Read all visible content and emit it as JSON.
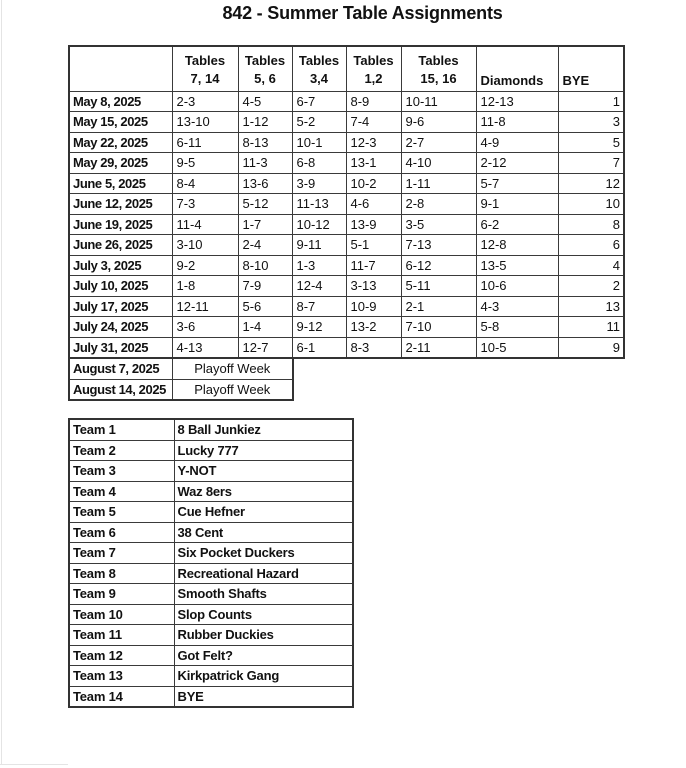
{
  "title": "842 - Summer Table Assignments",
  "schedule_table": {
    "header": {
      "columns": [
        {
          "line1": "",
          "line2": ""
        },
        {
          "line1": "Tables",
          "line2": "7, 14"
        },
        {
          "line1": "Tables",
          "line2": "5, 6"
        },
        {
          "line1": "Tables",
          "line2": "3,4"
        },
        {
          "line1": "Tables",
          "line2": "1,2"
        },
        {
          "line1": "Tables",
          "line2": "15, 16"
        },
        {
          "line1": "",
          "line2": "Diamonds"
        },
        {
          "line1": "",
          "line2": "BYE"
        }
      ]
    },
    "rows": [
      {
        "date": "May 8, 2025",
        "matches": [
          "2-3",
          "4-5",
          "6-7",
          "8-9",
          "10-11",
          "12-13"
        ],
        "bye": "1"
      },
      {
        "date": "May 15, 2025",
        "matches": [
          "13-10",
          "1-12",
          "5-2",
          "7-4",
          "9-6",
          "11-8"
        ],
        "bye": "3"
      },
      {
        "date": "May 22, 2025",
        "matches": [
          "6-11",
          "8-13",
          "10-1",
          "12-3",
          "2-7",
          "4-9"
        ],
        "bye": "5"
      },
      {
        "date": "May 29, 2025",
        "matches": [
          "9-5",
          "11-3",
          "6-8",
          "13-1",
          "4-10",
          "2-12"
        ],
        "bye": "7"
      },
      {
        "date": "June 5, 2025",
        "matches": [
          "8-4",
          "13-6",
          "3-9",
          "10-2",
          "1-11",
          "5-7"
        ],
        "bye": "12"
      },
      {
        "date": "June 12, 2025",
        "matches": [
          "7-3",
          "5-12",
          "11-13",
          "4-6",
          "2-8",
          "9-1"
        ],
        "bye": "10"
      },
      {
        "date": "June 19, 2025",
        "matches": [
          "11-4",
          "1-7",
          "10-12",
          "13-9",
          "3-5",
          "6-2"
        ],
        "bye": "8"
      },
      {
        "date": "June 26, 2025",
        "matches": [
          "3-10",
          "2-4",
          "9-11",
          "5-1",
          "7-13",
          "12-8"
        ],
        "bye": "6"
      },
      {
        "date": "July 3, 2025",
        "matches": [
          "9-2",
          "8-10",
          "1-3",
          "11-7",
          "6-12",
          "13-5"
        ],
        "bye": "4"
      },
      {
        "date": "July 10, 2025",
        "matches": [
          "1-8",
          "7-9",
          "12-4",
          "3-13",
          "5-11",
          "10-6"
        ],
        "bye": "2"
      },
      {
        "date": "July 17, 2025",
        "matches": [
          "12-11",
          "5-6",
          "8-7",
          "10-9",
          "2-1",
          "4-3"
        ],
        "bye": "13"
      },
      {
        "date": "July 24, 2025",
        "matches": [
          "3-6",
          "1-4",
          "9-12",
          "13-2",
          "7-10",
          "5-8"
        ],
        "bye": "11"
      },
      {
        "date": "July 31, 2025",
        "matches": [
          "4-13",
          "12-7",
          "6-1",
          "8-3",
          "2-11",
          "10-5"
        ],
        "bye": "9"
      }
    ],
    "playoff_rows": [
      {
        "date": "August 7, 2025",
        "label": "Playoff Week"
      },
      {
        "date": "August 14, 2025",
        "label": "Playoff Week"
      }
    ]
  },
  "teams_table": {
    "rows": [
      {
        "team": "Team 1",
        "name": "8 Ball Junkiez"
      },
      {
        "team": "Team 2",
        "name": "Lucky 777"
      },
      {
        "team": "Team 3",
        "name": "Y-NOT"
      },
      {
        "team": "Team 4",
        "name": "Waz 8ers"
      },
      {
        "team": "Team 5",
        "name": "Cue Hefner"
      },
      {
        "team": "Team 6",
        "name": "38 Cent"
      },
      {
        "team": "Team 7",
        "name": "Six Pocket Duckers"
      },
      {
        "team": "Team 8",
        "name": "Recreational Hazard"
      },
      {
        "team": "Team 9",
        "name": "Smooth Shafts"
      },
      {
        "team": "Team 10",
        "name": "Slop Counts"
      },
      {
        "team": "Team 11",
        "name": "Rubber Duckies"
      },
      {
        "team": "Team 12",
        "name": "Got Felt?"
      },
      {
        "team": "Team 13",
        "name": "Kirkpatrick Gang"
      },
      {
        "team": "Team 14",
        "name": "BYE"
      }
    ]
  }
}
